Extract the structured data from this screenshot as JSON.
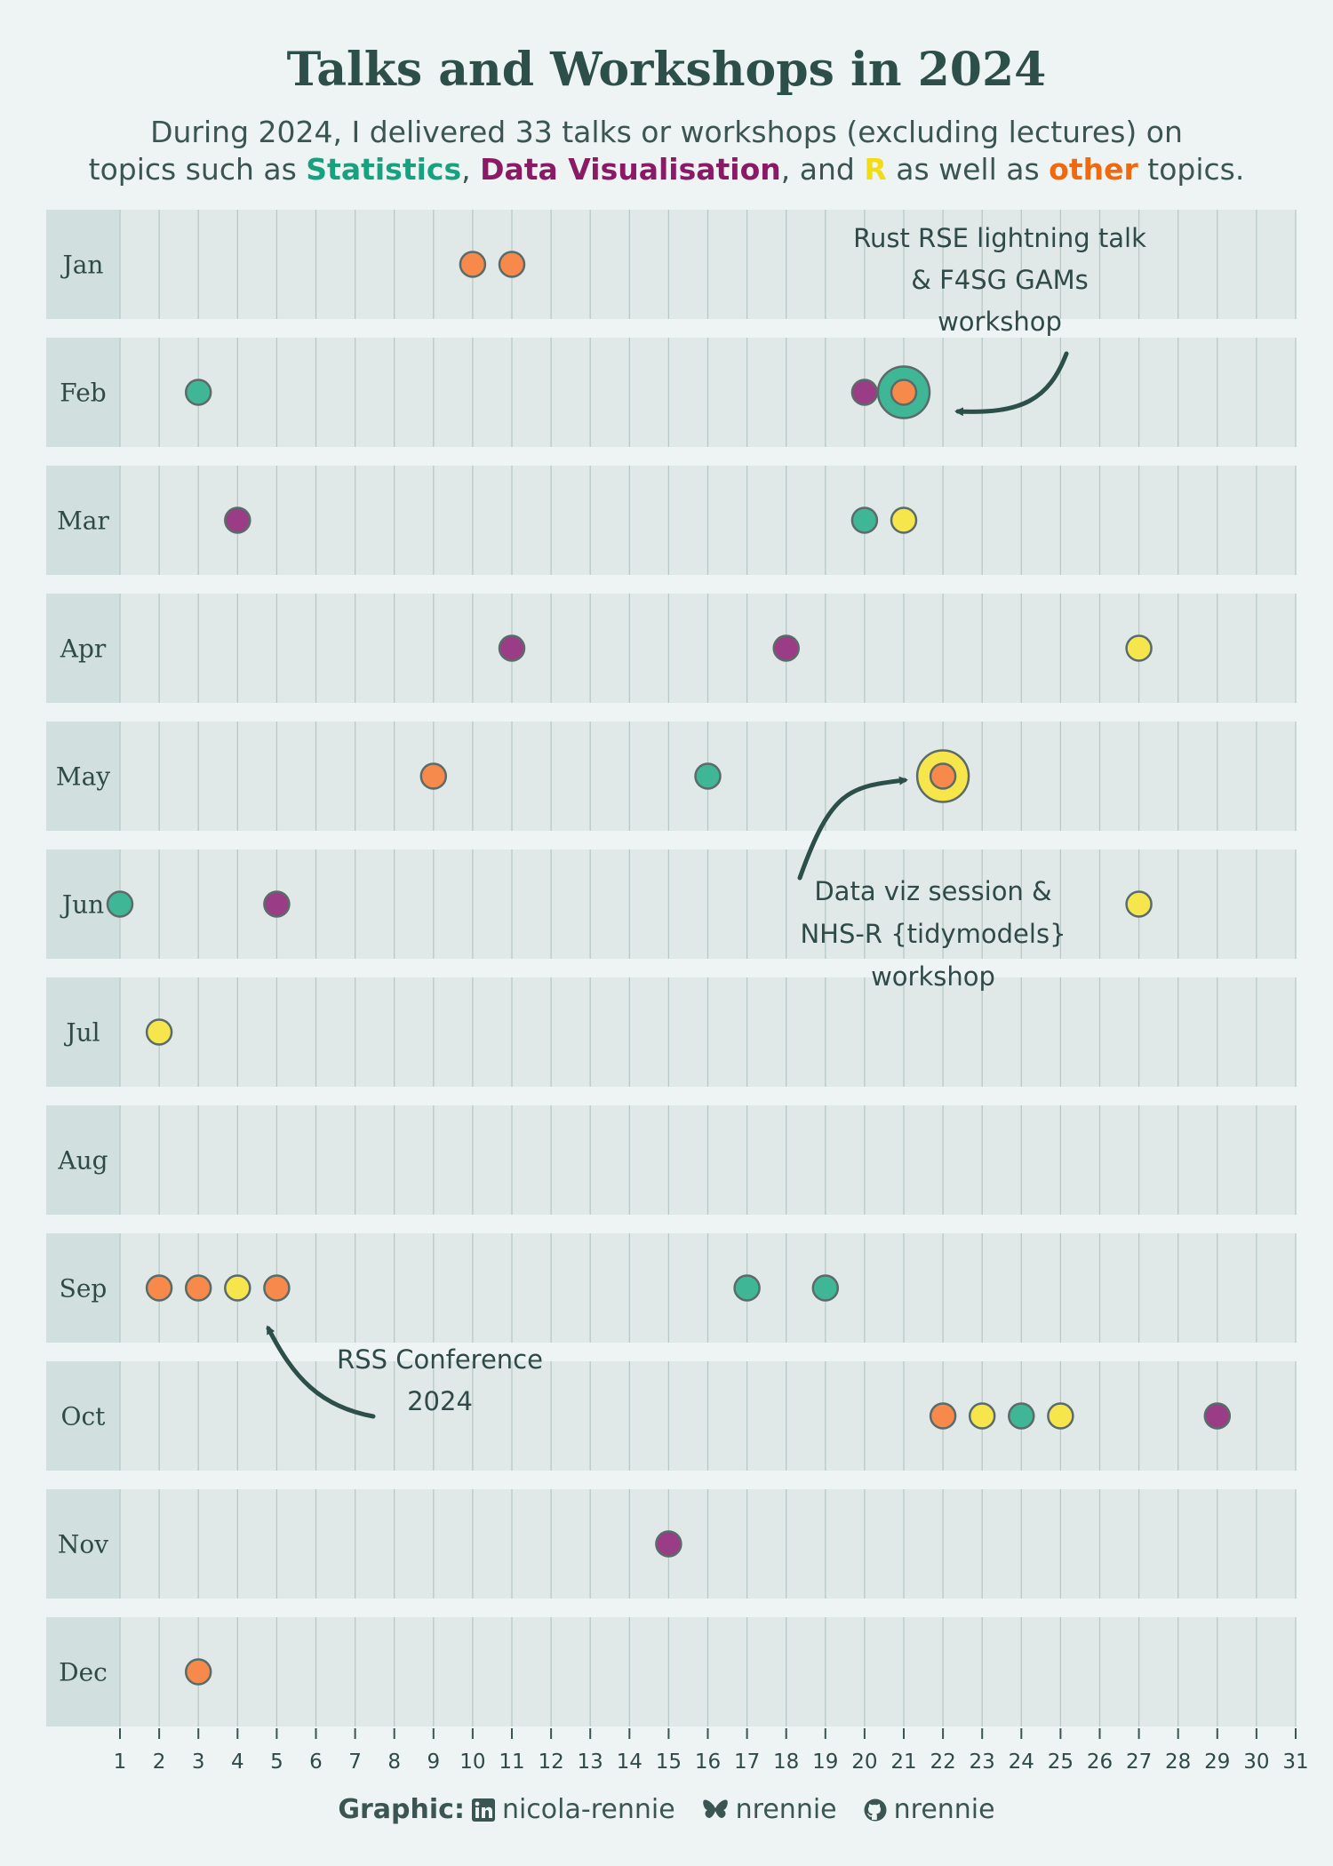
{
  "title": "Talks and Workshops in 2024",
  "subtitle": {
    "line1": "During 2024, I delivered 33 talks or workshops (excluding lectures) on",
    "pre": "topics such as ",
    "statistics": "Statistics",
    "sep1": ", ",
    "dataviz": "Data Visualisation",
    "sep2": ", and ",
    "r": "R",
    "mid": " as well as ",
    "other": "other",
    "post": " topics."
  },
  "colors": {
    "statistics": "#18a17f",
    "dataviz": "#8a1a66",
    "r": "#f2dc17",
    "other": "#f0690f",
    "row_bg": "#e0e9e8",
    "label_bg": "#d1e0de",
    "annotation": "#2d4f4a"
  },
  "chart_data": {
    "type": "scatter",
    "x_label": "",
    "x_ticks": [
      1,
      2,
      3,
      4,
      5,
      6,
      7,
      8,
      9,
      10,
      11,
      12,
      13,
      14,
      15,
      16,
      17,
      18,
      19,
      20,
      21,
      22,
      23,
      24,
      25,
      26,
      27,
      28,
      29,
      30,
      31
    ],
    "x_range": [
      1,
      31
    ],
    "months": [
      "Jan",
      "Feb",
      "Mar",
      "Apr",
      "May",
      "Jun",
      "Jul",
      "Aug",
      "Sep",
      "Oct",
      "Nov",
      "Dec"
    ],
    "points": [
      {
        "month": "Jan",
        "day": 10,
        "topic": "other"
      },
      {
        "month": "Jan",
        "day": 11,
        "topic": "other"
      },
      {
        "month": "Feb",
        "day": 3,
        "topic": "statistics"
      },
      {
        "month": "Feb",
        "day": 20,
        "topic": "dataviz"
      },
      {
        "month": "Feb",
        "day": 21,
        "topic": "statistics"
      },
      {
        "month": "Feb",
        "day": 21,
        "topic": "other"
      },
      {
        "month": "Mar",
        "day": 4,
        "topic": "dataviz"
      },
      {
        "month": "Mar",
        "day": 20,
        "topic": "statistics"
      },
      {
        "month": "Mar",
        "day": 21,
        "topic": "r"
      },
      {
        "month": "Apr",
        "day": 11,
        "topic": "dataviz"
      },
      {
        "month": "Apr",
        "day": 18,
        "topic": "dataviz"
      },
      {
        "month": "Apr",
        "day": 27,
        "topic": "r"
      },
      {
        "month": "May",
        "day": 9,
        "topic": "other"
      },
      {
        "month": "May",
        "day": 16,
        "topic": "statistics"
      },
      {
        "month": "May",
        "day": 22,
        "topic": "r"
      },
      {
        "month": "May",
        "day": 22,
        "topic": "other"
      },
      {
        "month": "Jun",
        "day": 1,
        "topic": "statistics"
      },
      {
        "month": "Jun",
        "day": 5,
        "topic": "dataviz"
      },
      {
        "month": "Jun",
        "day": 27,
        "topic": "r"
      },
      {
        "month": "Jul",
        "day": 2,
        "topic": "r"
      },
      {
        "month": "Sep",
        "day": 2,
        "topic": "other"
      },
      {
        "month": "Sep",
        "day": 3,
        "topic": "other"
      },
      {
        "month": "Sep",
        "day": 4,
        "topic": "r"
      },
      {
        "month": "Sep",
        "day": 5,
        "topic": "other"
      },
      {
        "month": "Sep",
        "day": 17,
        "topic": "statistics"
      },
      {
        "month": "Sep",
        "day": 19,
        "topic": "statistics"
      },
      {
        "month": "Oct",
        "day": 22,
        "topic": "other"
      },
      {
        "month": "Oct",
        "day": 23,
        "topic": "r"
      },
      {
        "month": "Oct",
        "day": 24,
        "topic": "statistics"
      },
      {
        "month": "Oct",
        "day": 25,
        "topic": "r"
      },
      {
        "month": "Oct",
        "day": 29,
        "topic": "dataviz"
      },
      {
        "month": "Nov",
        "day": 15,
        "topic": "dataviz"
      },
      {
        "month": "Dec",
        "day": 3,
        "topic": "other"
      }
    ],
    "annotations": [
      {
        "lines": [
          "Rust RSE lightning talk",
          "& F4SG GAMs",
          "workshop"
        ],
        "month": "Feb",
        "day": 21
      },
      {
        "lines": [
          "Data viz session &",
          "NHS-R {tidymodels}",
          "workshop"
        ],
        "month": "May",
        "day": 22
      },
      {
        "lines": [
          "RSS Conference",
          "2024"
        ],
        "month": "Sep",
        "day": 4.5
      }
    ],
    "grid": true,
    "legend": "none"
  },
  "footer": {
    "label": "Graphic:",
    "linkedin_icon": "linkedin-icon",
    "linkedin": "nicola-rennie",
    "bluesky_icon": "butterfly-icon",
    "bluesky": "nrennie",
    "github_icon": "github-icon",
    "github": "nrennie"
  }
}
